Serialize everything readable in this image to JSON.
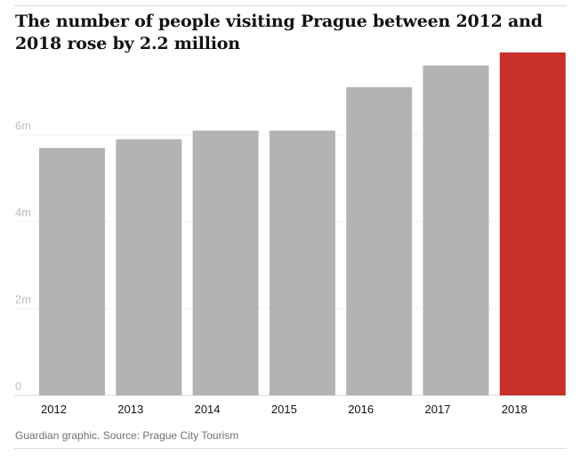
{
  "chart_data": {
    "type": "bar",
    "title": "The number of people visiting Prague between 2012 and 2018 rose by 2.2 million",
    "categories": [
      "2012",
      "2013",
      "2014",
      "2015",
      "2016",
      "2017",
      "2018"
    ],
    "values": [
      5.7,
      5.9,
      6.1,
      6.1,
      7.1,
      7.6,
      7.9
    ],
    "units": "million visitors",
    "y_ticks": [
      {
        "value": 0,
        "label": "0"
      },
      {
        "value": 2,
        "label": "2m"
      },
      {
        "value": 4,
        "label": "4m"
      },
      {
        "value": 6,
        "label": "6m"
      }
    ],
    "ylim": [
      0,
      8
    ],
    "xlabel": "",
    "ylabel": "",
    "grid": true,
    "highlight_category": "2018",
    "colors": {
      "bar": "#b3b3b3",
      "highlight": "#c7302b",
      "grid": "#dcdcdc"
    }
  },
  "footer": {
    "source": "Guardian graphic. Source: Prague City Tourism"
  }
}
